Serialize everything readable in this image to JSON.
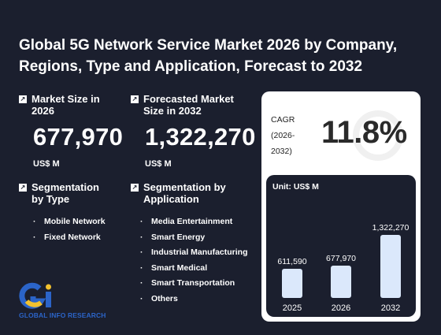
{
  "title": "Global 5G Network Service Market 2026 by Company, Regions, Type and Application, Forecast to 2032",
  "market_size": {
    "label": "Market Size in 2026",
    "value": "677,970",
    "unit": "US$ M"
  },
  "forecast": {
    "label": "Forecasted Market Size in 2032",
    "value": "1,322,270",
    "unit": "US$ M"
  },
  "cagr": {
    "label": "CAGR (2026-2032)",
    "value": "11.8%"
  },
  "segmentation_type": {
    "label": "Segmentation by Type",
    "items": [
      "Mobile Network",
      "Fixed Network"
    ]
  },
  "segmentation_application": {
    "label": "Segmentation by Application",
    "items": [
      "Media Entertainment",
      "Smart Energy",
      "Industrial Manufacturing",
      "Smart Medical",
      "Smart Transportation",
      "Others"
    ]
  },
  "logo": {
    "text": "GLOBAL INFO RESEARCH",
    "mark": "Gi",
    "watermark": "GLOBAL INFO RESEARCH"
  },
  "colors": {
    "background": "#1b1f2e",
    "bar": "#dbe8fb",
    "logo_blue": "#2b64c8",
    "logo_yellow": "#f2c12e"
  },
  "chart_data": {
    "type": "bar",
    "unit_label": "Unit: US$ M",
    "categories": [
      "2025",
      "2026",
      "2032"
    ],
    "values": [
      611590,
      677970,
      1322270
    ],
    "value_labels": [
      "611,590",
      "677,970",
      "1,322,270"
    ],
    "ylim": [
      0,
      1322270
    ]
  }
}
